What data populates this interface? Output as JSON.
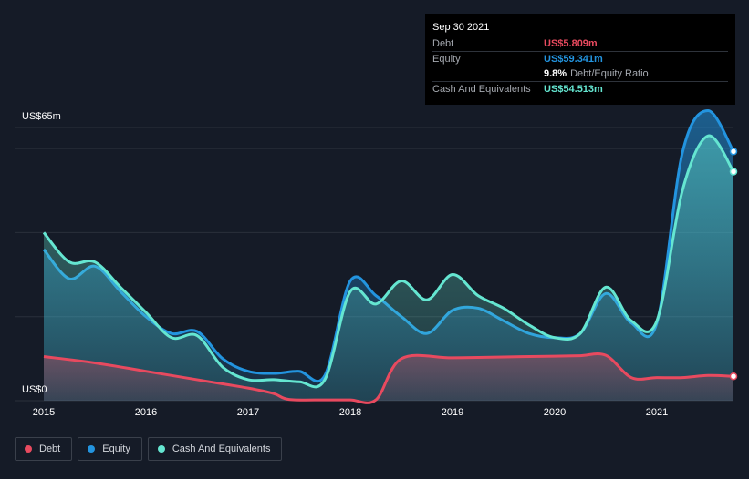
{
  "tooltip": {
    "date": "Sep 30 2021",
    "debt_label": "Debt",
    "debt_value": "US$5.809m",
    "equity_label": "Equity",
    "equity_value": "US$59.341m",
    "ratio_value": "9.8%",
    "ratio_label": "Debt/Equity Ratio",
    "cash_label": "Cash And Equivalents",
    "cash_value": "US$54.513m"
  },
  "colors": {
    "debt": "#e84a5f",
    "equity": "#2394df",
    "cash": "#65e6d1",
    "background": "#151b27"
  },
  "legend": [
    {
      "name": "Debt",
      "color": "#e84a5f"
    },
    {
      "name": "Equity",
      "color": "#2394df"
    },
    {
      "name": "Cash And Equivalents",
      "color": "#65e6d1"
    }
  ],
  "chart_data": {
    "type": "area",
    "title": "",
    "xlabel": "",
    "ylabel": "",
    "y_top_label": "US$65m",
    "y_bottom_label": "US$0",
    "xlim": [
      2015.0,
      2021.75
    ],
    "ylim": [
      0,
      65
    ],
    "x_ticks": [
      "2015",
      "2016",
      "2017",
      "2018",
      "2019",
      "2020",
      "2021"
    ],
    "x_tick_values": [
      2015,
      2016,
      2017,
      2018,
      2019,
      2020,
      2021
    ],
    "grid": true,
    "legend_position": "bottom-left",
    "series": [
      {
        "name": "Debt",
        "x": [
          2015.0,
          2015.5,
          2016.0,
          2016.5,
          2016.75,
          2017.0,
          2017.25,
          2017.4,
          2017.75,
          2018.0,
          2018.25,
          2018.5,
          2019.0,
          2019.5,
          2020.0,
          2020.25,
          2020.5,
          2020.75,
          2021.0,
          2021.25,
          2021.5,
          2021.75
        ],
        "values": [
          10.5,
          9.0,
          7.0,
          5.0,
          4.0,
          3.0,
          1.7,
          0.3,
          0.2,
          0.2,
          0.2,
          10.0,
          10.2,
          10.4,
          10.6,
          10.7,
          10.8,
          5.5,
          5.5,
          5.5,
          6.0,
          5.8
        ]
      },
      {
        "name": "Equity",
        "x": [
          2015.0,
          2015.25,
          2015.5,
          2015.75,
          2016.0,
          2016.25,
          2016.5,
          2016.75,
          2017.0,
          2017.25,
          2017.5,
          2017.75,
          2018.0,
          2018.25,
          2018.5,
          2018.75,
          2019.0,
          2019.25,
          2019.5,
          2019.75,
          2020.0,
          2020.25,
          2020.5,
          2020.75,
          2021.0,
          2021.25,
          2021.5,
          2021.75
        ],
        "values": [
          36,
          29,
          32,
          26,
          20,
          16,
          16.5,
          10,
          7,
          6.5,
          7,
          6,
          28.5,
          25,
          20,
          16,
          21.5,
          22,
          19,
          16,
          15,
          16,
          25.5,
          18.5,
          18.5,
          59,
          69,
          59.3
        ]
      },
      {
        "name": "Cash And Equivalents",
        "x": [
          2015.0,
          2015.25,
          2015.5,
          2015.75,
          2016.0,
          2016.25,
          2016.5,
          2016.75,
          2017.0,
          2017.25,
          2017.5,
          2017.75,
          2018.0,
          2018.25,
          2018.5,
          2018.75,
          2019.0,
          2019.25,
          2019.5,
          2019.75,
          2020.0,
          2020.25,
          2020.5,
          2020.75,
          2021.0,
          2021.25,
          2021.5,
          2021.75
        ],
        "values": [
          40,
          33,
          33,
          27,
          21,
          15,
          15.5,
          8,
          5,
          5,
          4.5,
          5,
          26,
          23,
          28.5,
          24,
          30,
          25,
          22,
          18,
          15,
          16,
          27,
          19,
          19,
          50,
          63,
          54.5
        ]
      }
    ]
  }
}
